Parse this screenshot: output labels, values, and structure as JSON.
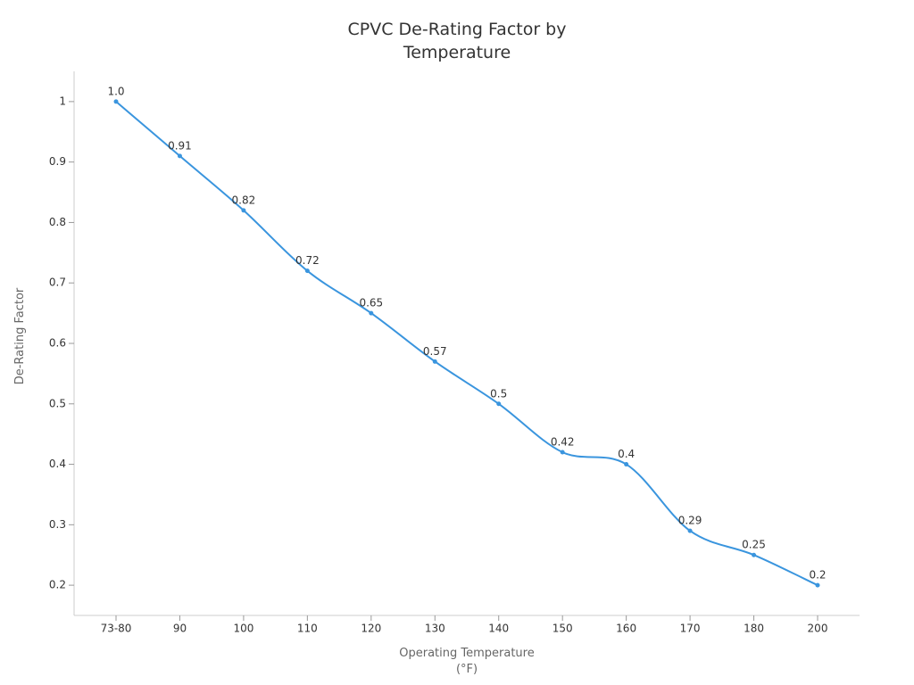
{
  "chart_data": {
    "type": "line",
    "title": "CPVC De-Rating Factor by Temperature",
    "x_label": "Operating Temperature (°F)",
    "y_label": "De-Rating Factor",
    "categories": [
      "73-80",
      "90",
      "100",
      "110",
      "120",
      "130",
      "140",
      "150",
      "160",
      "170",
      "180",
      "200"
    ],
    "values": [
      1.0,
      0.91,
      0.82,
      0.72,
      0.65,
      0.57,
      0.5,
      0.42,
      0.4,
      0.29,
      0.25,
      0.2
    ],
    "value_labels": [
      "1.0",
      "0.91",
      "0.82",
      "0.72",
      "0.65",
      "0.57",
      "0.5",
      "0.42",
      "0.4",
      "0.29",
      "0.25",
      "0.2"
    ],
    "color": "#3a95de",
    "smooth": true,
    "grid": false,
    "ylim": [
      0.15,
      1.05
    ],
    "yticks": [
      0.2,
      0.3,
      0.4,
      0.5,
      0.6,
      0.7,
      0.8,
      0.9,
      1
    ]
  }
}
